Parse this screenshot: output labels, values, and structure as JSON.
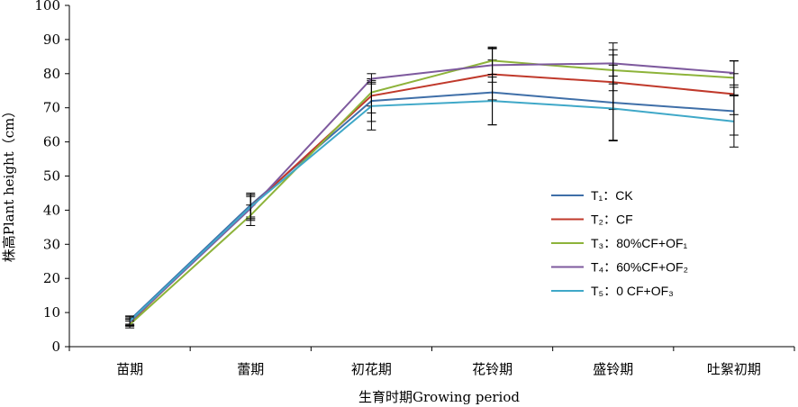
{
  "chart_data": {
    "type": "line",
    "xlabel": "生育时期Growing period",
    "ylabel": "株高Plant height（cm）",
    "ylim": [
      0,
      100
    ],
    "yticks": [
      0,
      10,
      20,
      30,
      40,
      50,
      60,
      70,
      80,
      90,
      100
    ],
    "categories": [
      "苗期",
      "蕾期",
      "初花期",
      "花铃期",
      "盛铃期",
      "吐絮初期"
    ],
    "grid": false,
    "legend_position": "right-middle",
    "series": [
      {
        "name": "T₁：CK",
        "color": "#3F6FA8",
        "values": [
          7.8,
          41.5,
          72.0,
          74.5,
          71.5,
          69.0
        ],
        "err": [
          1.2,
          3.5,
          6.0,
          9.5,
          11.0,
          7.0
        ]
      },
      {
        "name": "T₂：CF",
        "color": "#C0392B",
        "values": [
          7.0,
          41.0,
          73.5,
          79.8,
          77.5,
          74.0
        ],
        "err": [
          1.0,
          3.5,
          5.0,
          7.5,
          8.0,
          6.0
        ]
      },
      {
        "name": "T₃：80%CF+OF₁",
        "color": "#8DB33A",
        "values": [
          6.5,
          38.5,
          74.5,
          83.8,
          81.0,
          78.8
        ],
        "err": [
          1.0,
          3.0,
          4.0,
          4.0,
          6.0,
          5.0
        ]
      },
      {
        "name": "T₄：60%CF+OF₂",
        "color": "#7E5A9E",
        "values": [
          7.2,
          40.5,
          78.5,
          82.5,
          83.0,
          80.2
        ],
        "err": [
          1.0,
          3.5,
          1.5,
          5.0,
          6.0,
          3.5
        ]
      },
      {
        "name": "T₅：0 CF+OF₃",
        "color": "#3FA8C8",
        "values": [
          7.5,
          41.0,
          70.5,
          72.0,
          69.8,
          66.0
        ],
        "err": [
          1.2,
          3.5,
          7.0,
          7.0,
          9.5,
          7.5
        ]
      }
    ]
  }
}
